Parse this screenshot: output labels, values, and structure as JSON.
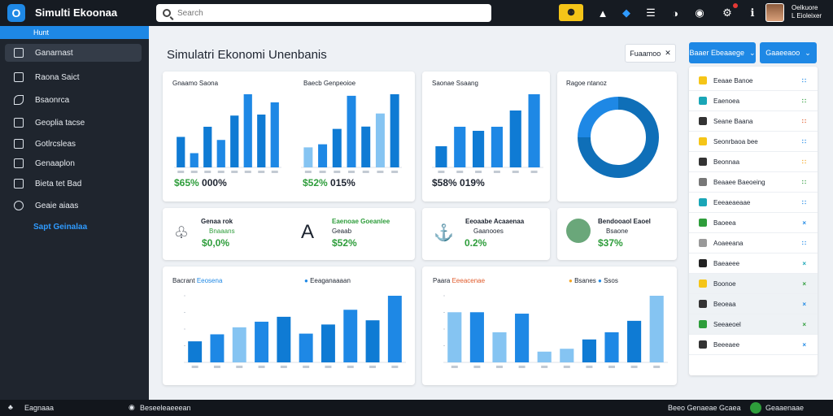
{
  "topbar": {
    "app_title": "Simulti Ekoonaa",
    "search_placeholder": "Search",
    "user_name": "Oelkuore",
    "user_role": "L Eioleixer"
  },
  "sidebar": {
    "active_header": "Hunt",
    "items": [
      {
        "label": "Ganarnast",
        "selected": true
      },
      {
        "label": "Raona Saict"
      },
      {
        "label": "Bsaonrca"
      },
      {
        "label": "Geoplia tacse"
      },
      {
        "label": "Gotlrcsleas"
      },
      {
        "label": "Genaaplon"
      },
      {
        "label": "Bieta tet Bad"
      },
      {
        "label": "Geaie aiaas"
      }
    ],
    "link": "Sapt Geinalaa"
  },
  "main": {
    "title": "Simulatri Ekonomi Unenbanis",
    "export_label": "Fuaamoo"
  },
  "cards_top": [
    {
      "title": "Gnaamo Saona",
      "value": "$65%",
      "value2": "000%"
    },
    {
      "title": "Baecb Genpeoioe",
      "value": "$52%",
      "value2": "015%"
    },
    {
      "title": "Saonae Ssaang",
      "value": "$58%",
      "value2": "019%"
    },
    {
      "title": "Ragoe ntanoz"
    }
  ],
  "cards_mid": [
    {
      "title": "Genaa rok",
      "sub": "Bnaaans",
      "value": "$0,0%"
    },
    {
      "title": "Eaenoae Goeanlee",
      "sub": "Geaab",
      "value": "$52%"
    },
    {
      "title": "Eeoaabe Acaaenaa",
      "sub": "Gaanooes",
      "value": "0.2%"
    },
    {
      "title": "Bendooaol Eaoel",
      "sub": "Bsaone",
      "value": "$37%"
    }
  ],
  "cards_bottom": [
    {
      "title": "Bacrant",
      "title_accent": "Eeosena",
      "legend": "Eeaganaaaan"
    },
    {
      "title": "Paara",
      "title_accent": "Eeeacenae",
      "legend": "Bsanes",
      "legend2": "Ssos"
    }
  ],
  "right_panel": {
    "button1": "Baaer Ebeaaege",
    "button2": "Gaaeeaoo",
    "rows": [
      {
        "label": "Eeaae Banoe",
        "status": "∷"
      },
      {
        "label": "Eaenoea",
        "status": "∷"
      },
      {
        "label": "Seane Baana",
        "status": "∷"
      },
      {
        "label": "Seonrbaoa bee",
        "status": "∷"
      },
      {
        "label": "Beonnaa",
        "status": "∷"
      },
      {
        "label": "Beaaee Baeoeing",
        "status": "∷"
      },
      {
        "label": "Eeeaeaeaae",
        "status": "∷"
      },
      {
        "label": "Baoeea",
        "status": "×"
      },
      {
        "label": "Aoaeeana",
        "status": "∷"
      },
      {
        "label": "Baeaeee",
        "status": "×"
      },
      {
        "label": "Boonoe",
        "status": "×"
      },
      {
        "label": "Beoeaa",
        "status": "×"
      },
      {
        "label": "Seeaeoel",
        "status": "×"
      },
      {
        "label": "Beeeaee",
        "status": "×"
      }
    ]
  },
  "bottombar": {
    "left": "Eagnaaa",
    "mid": "Beseeleaeeean",
    "right1": "Beeo Genaeae Gcaea",
    "right2": "Geaaenaae"
  },
  "colors": {
    "accent": "#1e88e5",
    "sidebar": "#1f252e",
    "topbar": "#161b22",
    "green": "#2e9d3b"
  },
  "chart_data": [
    {
      "type": "bar",
      "title": "Gnaamo Saona",
      "values": [
        3,
        1.4,
        4,
        2.7,
        5.1,
        7.2,
        5.2,
        6.4
      ]
    },
    {
      "type": "bar",
      "title": "Baecb Genpeoioe",
      "values": [
        2.6,
        3,
        5,
        9.3,
        5.3,
        7,
        9.5
      ]
    },
    {
      "type": "bar",
      "title": "Saonae Ssaang",
      "values": [
        2.6,
        5,
        4.5,
        5,
        7,
        9
      ]
    },
    {
      "type": "pie",
      "title": "Ragoe ntanoz",
      "values": [
        75,
        25
      ]
    },
    {
      "type": "bar",
      "title": "Bacrant Eeosena",
      "values": [
        3,
        4,
        5,
        5.8,
        6.5,
        4.1,
        5.4,
        7.5,
        6,
        9.5
      ]
    },
    {
      "type": "bar",
      "title": "Paara Eeeacenae",
      "values": [
        7,
        7,
        4.2,
        6.8,
        1.5,
        1.9,
        3.2,
        4.2,
        5.8,
        9.3
      ]
    }
  ]
}
